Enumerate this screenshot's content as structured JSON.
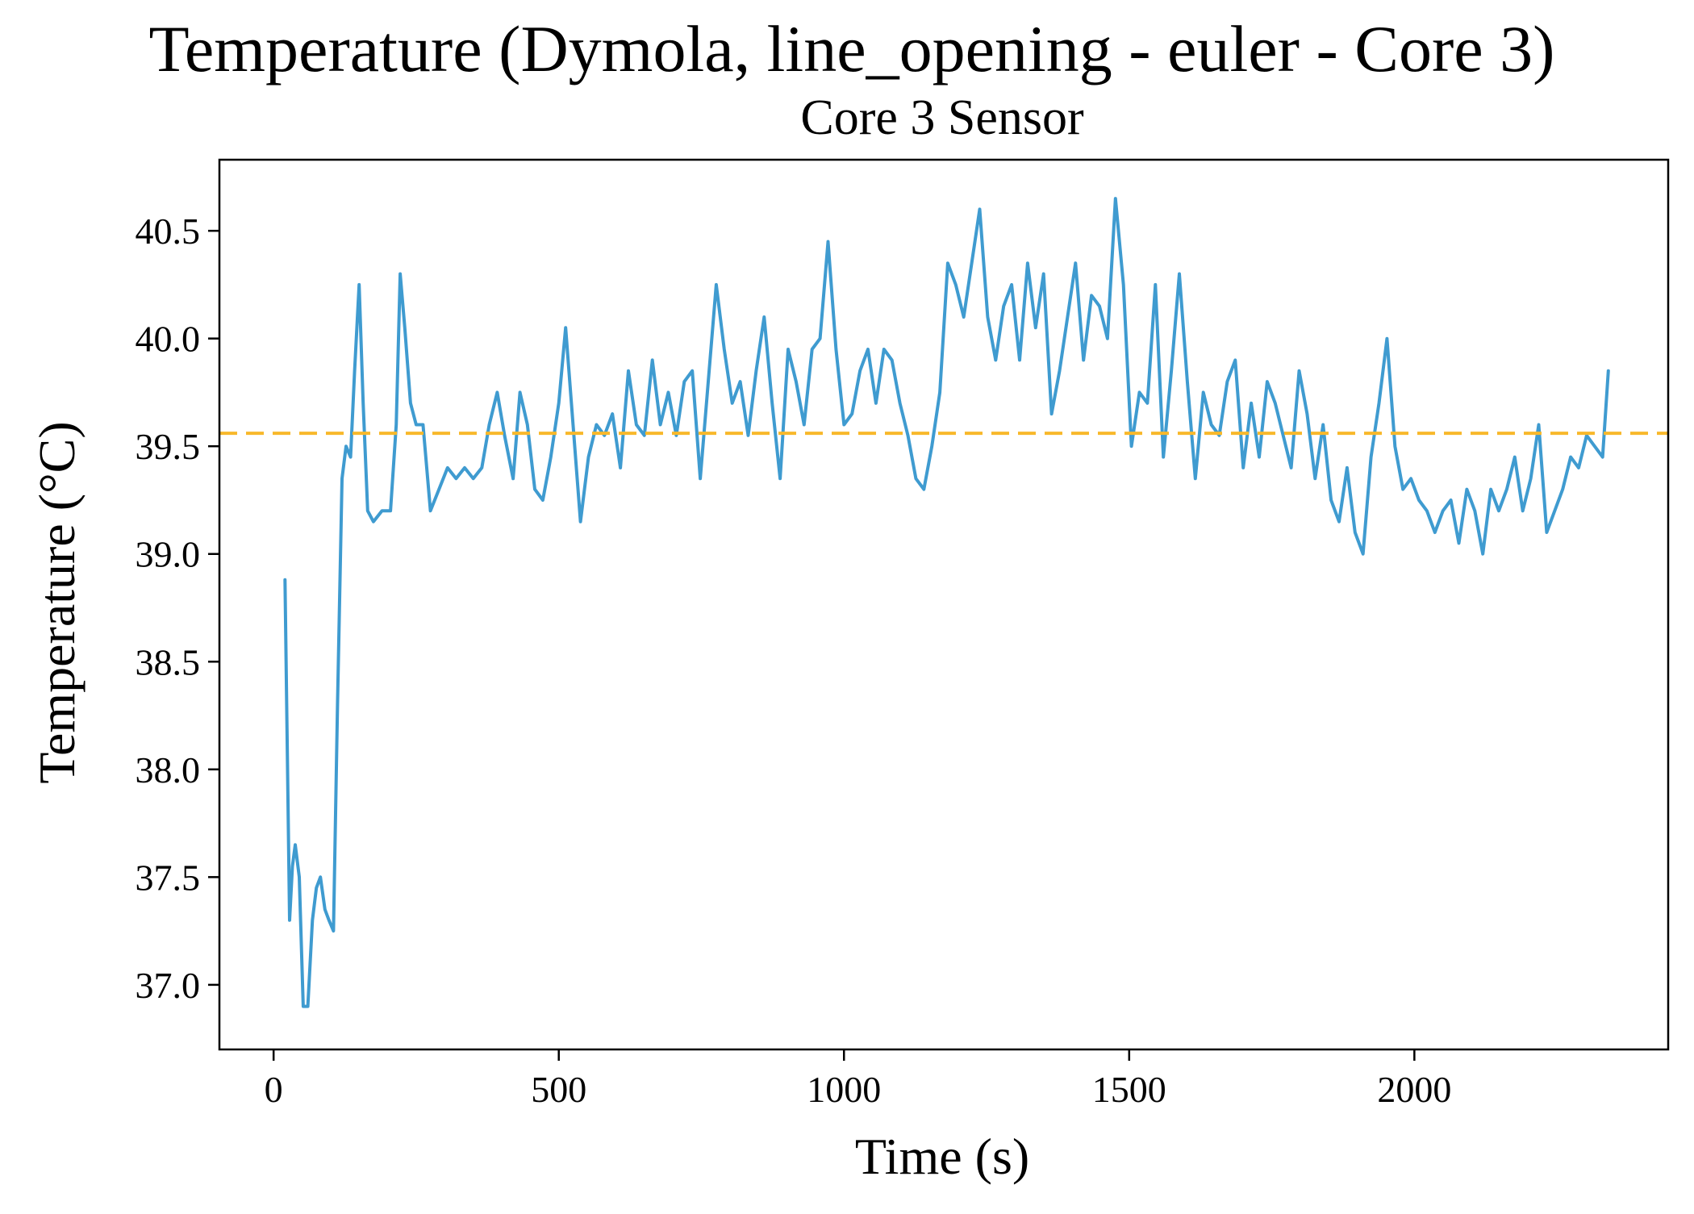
{
  "chart_data": {
    "type": "line",
    "title": "Temperature (Dymola, line_opening - euler - Core 3)",
    "subtitle": "Core 3 Sensor",
    "xlabel": "Time (s)",
    "ylabel": "Temperature (°C)",
    "xlim": [
      -95,
      2445
    ],
    "ylim": [
      36.7,
      40.83
    ],
    "xticks": [
      0,
      500,
      1000,
      1500,
      2000
    ],
    "xtick_labels": [
      "0",
      "500",
      "1000",
      "1500",
      "2000"
    ],
    "yticks": [
      37.0,
      37.5,
      38.0,
      38.5,
      39.0,
      39.5,
      40.0,
      40.5
    ],
    "ytick_labels": [
      "37.0",
      "37.5",
      "38.0",
      "38.5",
      "39.0",
      "39.5",
      "40.0",
      "40.5"
    ],
    "grid": false,
    "legend": "none",
    "series": [
      {
        "color": "#3f9bd0",
        "x": [
          20,
          28,
          33,
          38,
          45,
          52,
          60,
          68,
          75,
          82,
          90,
          97,
          105,
          112,
          120,
          127,
          135,
          142,
          150,
          157,
          165,
          175,
          190,
          205,
          215,
          222,
          230,
          240,
          250,
          262,
          275,
          290,
          305,
          320,
          335,
          350,
          365,
          378,
          392,
          405,
          420,
          432,
          445,
          458,
          472,
          486,
          500,
          512,
          525,
          538,
          552,
          566,
          580,
          594,
          608,
          622,
          636,
          650,
          664,
          678,
          692,
          706,
          720,
          734,
          748,
          762,
          776,
          790,
          804,
          818,
          832,
          846,
          860,
          874,
          888,
          902,
          916,
          930,
          944,
          958,
          972,
          986,
          1000,
          1014,
          1028,
          1042,
          1056,
          1070,
          1084,
          1098,
          1112,
          1126,
          1140,
          1154,
          1168,
          1182,
          1196,
          1210,
          1224,
          1238,
          1252,
          1266,
          1280,
          1294,
          1308,
          1322,
          1336,
          1350,
          1364,
          1378,
          1392,
          1406,
          1420,
          1434,
          1448,
          1462,
          1476,
          1490,
          1504,
          1518,
          1532,
          1546,
          1560,
          1574,
          1588,
          1602,
          1616,
          1630,
          1644,
          1658,
          1672,
          1686,
          1700,
          1714,
          1728,
          1742,
          1756,
          1770,
          1784,
          1798,
          1812,
          1826,
          1840,
          1854,
          1868,
          1882,
          1896,
          1910,
          1924,
          1938,
          1952,
          1966,
          1980,
          1994,
          2008,
          2022,
          2036,
          2050,
          2064,
          2078,
          2092,
          2106,
          2120,
          2134,
          2148,
          2162,
          2176,
          2190,
          2204,
          2218,
          2232,
          2246,
          2260,
          2274,
          2288,
          2302,
          2316,
          2330,
          2340
        ],
        "y": [
          38.88,
          37.3,
          37.55,
          37.65,
          37.5,
          36.9,
          36.9,
          37.3,
          37.45,
          37.5,
          37.35,
          37.3,
          37.25,
          38.3,
          39.35,
          39.5,
          39.45,
          39.85,
          40.25,
          39.7,
          39.2,
          39.15,
          39.2,
          39.2,
          39.6,
          40.3,
          40.05,
          39.7,
          39.6,
          39.6,
          39.2,
          39.3,
          39.4,
          39.35,
          39.4,
          39.35,
          39.4,
          39.6,
          39.75,
          39.55,
          39.35,
          39.75,
          39.6,
          39.3,
          39.25,
          39.45,
          39.7,
          40.05,
          39.6,
          39.15,
          39.45,
          39.6,
          39.55,
          39.65,
          39.4,
          39.85,
          39.6,
          39.55,
          39.9,
          39.6,
          39.75,
          39.55,
          39.8,
          39.85,
          39.35,
          39.8,
          40.25,
          39.95,
          39.7,
          39.8,
          39.55,
          39.85,
          40.1,
          39.7,
          39.35,
          39.95,
          39.8,
          39.6,
          39.95,
          40.0,
          40.45,
          39.95,
          39.6,
          39.65,
          39.85,
          39.95,
          39.7,
          39.95,
          39.9,
          39.7,
          39.55,
          39.35,
          39.3,
          39.5,
          39.75,
          40.35,
          40.25,
          40.1,
          40.35,
          40.6,
          40.1,
          39.9,
          40.15,
          40.25,
          39.9,
          40.35,
          40.05,
          40.3,
          39.65,
          39.85,
          40.1,
          40.35,
          39.9,
          40.2,
          40.15,
          40.0,
          40.65,
          40.25,
          39.5,
          39.75,
          39.7,
          40.25,
          39.45,
          39.85,
          40.3,
          39.8,
          39.35,
          39.75,
          39.6,
          39.55,
          39.8,
          39.9,
          39.4,
          39.7,
          39.45,
          39.8,
          39.7,
          39.55,
          39.4,
          39.85,
          39.65,
          39.35,
          39.6,
          39.25,
          39.15,
          39.4,
          39.1,
          39.0,
          39.45,
          39.7,
          40.0,
          39.5,
          39.3,
          39.35,
          39.25,
          39.2,
          39.1,
          39.2,
          39.25,
          39.05,
          39.3,
          39.2,
          39.0,
          39.3,
          39.2,
          39.3,
          39.45,
          39.2,
          39.35,
          39.6,
          39.1,
          39.2,
          39.3,
          39.45,
          39.4,
          39.55,
          39.5,
          39.45,
          39.85
        ]
      }
    ],
    "hlines": [
      {
        "y": 39.56,
        "color": "#f8b82a",
        "style": "dashed"
      }
    ]
  }
}
